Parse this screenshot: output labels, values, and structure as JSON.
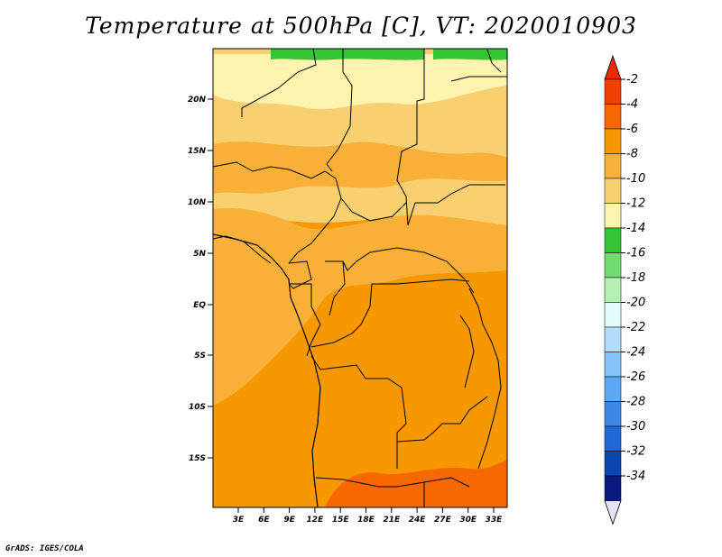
{
  "title": "Temperature at 500hPa [C], VT: 2020010903",
  "credit": "GrADS: IGES/COLA",
  "axes": {
    "lat_ticks": [
      "20N",
      "15N",
      "10N",
      "5N",
      "EQ",
      "5S",
      "10S",
      "15S"
    ],
    "lon_ticks": [
      "3E",
      "6E",
      "9E",
      "12E",
      "15E",
      "18E",
      "21E",
      "24E",
      "27E",
      "30E",
      "33E"
    ]
  },
  "colorbar": {
    "labels": [
      "-2",
      "-4",
      "-6",
      "-8",
      "-10",
      "-12",
      "-14",
      "-16",
      "-18",
      "-20",
      "-22",
      "-24",
      "-26",
      "-28",
      "-30",
      "-32",
      "-34"
    ],
    "colors": [
      "#f04000",
      "#f86800",
      "#f89800",
      "#f8b038",
      "#f8d070",
      "#fef4b0",
      "#34c434",
      "#70dc70",
      "#b4f0b4",
      "#e4fbfb",
      "#b4dcfb",
      "#84c4f8",
      "#5ca8f4",
      "#3c88e8",
      "#2068d8",
      "#0c44b0",
      "#0a1a80"
    ],
    "top_arrow_color": "#f02800",
    "bottom_arrow_color": "#e4e4f8"
  },
  "field_colors": {
    "warm_-4": "#f89800",
    "mid_-6": "#f8b038",
    "cool_-8": "#f8d070",
    "cold_-10": "#fef4b0",
    "hot_-2": "#f86800",
    "green_-12": "#34c434"
  }
}
